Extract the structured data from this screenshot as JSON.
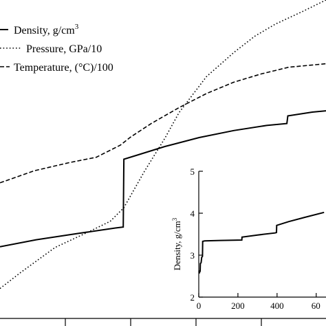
{
  "chart_data": [
    {
      "type": "line",
      "title": "",
      "xlabel": "",
      "ylabel": "",
      "legend_position": "top-left",
      "grid": false,
      "series": [
        {
          "name": "Density, g/cm",
          "name_sup": "3",
          "style": "solid",
          "points": [
            [
              0.0,
              0.775
            ],
            [
              0.111,
              0.753
            ],
            [
              0.24,
              0.733
            ],
            [
              0.354,
              0.716
            ],
            [
              0.369,
              0.714
            ],
            [
              0.378,
              0.713
            ],
            [
              0.38,
              0.5
            ],
            [
              0.421,
              0.487
            ],
            [
              0.506,
              0.46
            ],
            [
              0.611,
              0.432
            ],
            [
              0.717,
              0.41
            ],
            [
              0.818,
              0.394
            ],
            [
              0.88,
              0.388
            ],
            [
              0.883,
              0.364
            ],
            [
              0.958,
              0.352
            ],
            [
              1.0,
              0.348
            ]
          ]
        },
        {
          "name": "Pressure, GPa/10",
          "style": "dotted",
          "points": [
            [
              0.0,
              0.906
            ],
            [
              0.063,
              0.856
            ],
            [
              0.169,
              0.777
            ],
            [
              0.274,
              0.727
            ],
            [
              0.338,
              0.695
            ],
            [
              0.38,
              0.652
            ],
            [
              0.443,
              0.538
            ],
            [
              0.506,
              0.434
            ],
            [
              0.549,
              0.354
            ],
            [
              0.633,
              0.241
            ],
            [
              0.717,
              0.165
            ],
            [
              0.781,
              0.114
            ],
            [
              0.844,
              0.076
            ],
            [
              0.928,
              0.036
            ],
            [
              1.0,
              0.0
            ]
          ]
        },
        {
          "name": "Temperature, (°C)/100",
          "style": "dashed",
          "points": [
            [
              0.0,
              0.574
            ],
            [
              0.106,
              0.536
            ],
            [
              0.211,
              0.511
            ],
            [
              0.295,
              0.494
            ],
            [
              0.369,
              0.456
            ],
            [
              0.401,
              0.43
            ],
            [
              0.464,
              0.388
            ],
            [
              0.549,
              0.338
            ],
            [
              0.633,
              0.294
            ],
            [
              0.717,
              0.258
            ],
            [
              0.802,
              0.232
            ],
            [
              0.886,
              0.211
            ],
            [
              0.97,
              0.203
            ],
            [
              1.0,
              0.2
            ]
          ]
        }
      ]
    },
    {
      "type": "line",
      "title": "",
      "xlabel": "",
      "ylabel": "Density, g/cm",
      "ylabel_sup": "3",
      "xlim": [
        0,
        650
      ],
      "ylim": [
        2,
        5
      ],
      "xticks": [
        "0",
        "200",
        "400",
        "60"
      ],
      "yticks": [
        "2",
        "3",
        "4",
        "5"
      ],
      "series": [
        {
          "name": "",
          "style": "solid",
          "points": [
            [
              0,
              2.58
            ],
            [
              4,
              2.58
            ],
            [
              5,
              2.62
            ],
            [
              7,
              2.62
            ],
            [
              8,
              2.8
            ],
            [
              12,
              2.82
            ],
            [
              15,
              2.95
            ],
            [
              19,
              2.97
            ],
            [
              20,
              3.33
            ],
            [
              30,
              3.34
            ],
            [
              110,
              3.35
            ],
            [
              220,
              3.36
            ],
            [
              221,
              3.43
            ],
            [
              300,
              3.48
            ],
            [
              390,
              3.53
            ],
            [
              397,
              3.54
            ],
            [
              398,
              3.71
            ],
            [
              460,
              3.8
            ],
            [
              540,
              3.9
            ],
            [
              640,
              4.02
            ]
          ]
        }
      ]
    }
  ]
}
